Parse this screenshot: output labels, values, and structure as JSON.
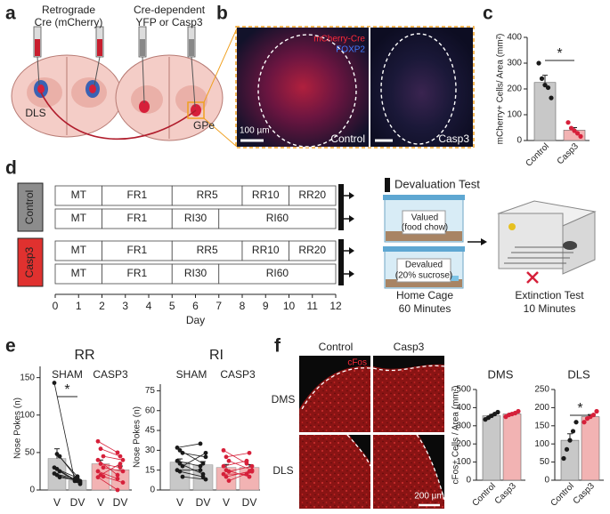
{
  "panel_labels": [
    "a",
    "b",
    "c",
    "d",
    "e",
    "f"
  ],
  "panel_a": {
    "injection_1": [
      "Retrograde",
      "Cre (mCherry)"
    ],
    "injection_2": [
      "Cre-dependent",
      "YFP or Casp3"
    ],
    "regions": [
      "DLS",
      "GPe"
    ]
  },
  "panel_b": {
    "stains": [
      "mCherry-Cre",
      "FOXP2"
    ],
    "scale_bar": "100 µm",
    "conditions": [
      "Control",
      "Casp3"
    ]
  },
  "panel_d": {
    "test_title": "Devaluation Test",
    "valued": [
      "Valued",
      "(food chow)"
    ],
    "devalued": [
      "Devalued",
      "(20% sucrose)"
    ],
    "home_cage": [
      "Home Cage",
      "60 Minutes"
    ],
    "extinction": [
      "Extinction Test",
      "10 Minutes"
    ]
  },
  "panel_f": {
    "conditions": [
      "Control",
      "Casp3"
    ],
    "stain": "cFos",
    "regions": [
      "DMS",
      "DLS"
    ],
    "scale_bar": "200 µm"
  },
  "chart_data": [
    {
      "type": "bar",
      "ylabel": "mCherry+ Cells/ Area (mm²)",
      "categories": [
        "Control",
        "Casp3"
      ],
      "values": [
        225,
        40
      ],
      "errors": [
        28,
        10
      ],
      "colors": [
        "#c8c8c8",
        "#f2b3b3"
      ],
      "point_colors": [
        "#1a1a1a",
        "#d6203a"
      ],
      "points": [
        [
          300,
          240,
          215,
          205,
          165
        ],
        [
          70,
          48,
          38,
          28,
          16
        ]
      ],
      "ylim": [
        0,
        400
      ],
      "yticks": [
        0,
        100,
        200,
        300,
        400
      ],
      "significance": "*"
    },
    {
      "type": "timeline",
      "xlabel": "Day",
      "xlim": [
        0,
        12
      ],
      "xticks": [
        0,
        1,
        2,
        3,
        4,
        5,
        6,
        7,
        8,
        9,
        10,
        11,
        12
      ],
      "groups": [
        {
          "name": "Control",
          "color": "#8c8c8c",
          "rows": [
            [
              {
                "label": "MT",
                "start": 0,
                "end": 2
              },
              {
                "label": "FR1",
                "start": 2,
                "end": 5
              },
              {
                "label": "RR5",
                "start": 5,
                "end": 8
              },
              {
                "label": "RR10",
                "start": 8,
                "end": 10
              },
              {
                "label": "RR20",
                "start": 10,
                "end": 12
              }
            ],
            [
              {
                "label": "MT",
                "start": 0,
                "end": 2
              },
              {
                "label": "FR1",
                "start": 2,
                "end": 5
              },
              {
                "label": "RI30",
                "start": 5,
                "end": 7
              },
              {
                "label": "RI60",
                "start": 7,
                "end": 12
              }
            ]
          ]
        },
        {
          "name": "Casp3",
          "color": "#e0312f",
          "rows": [
            [
              {
                "label": "MT",
                "start": 0,
                "end": 2
              },
              {
                "label": "FR1",
                "start": 2,
                "end": 5
              },
              {
                "label": "RR5",
                "start": 5,
                "end": 8
              },
              {
                "label": "RR10",
                "start": 8,
                "end": 10
              },
              {
                "label": "RR20",
                "start": 10,
                "end": 12
              }
            ],
            [
              {
                "label": "MT",
                "start": 0,
                "end": 2
              },
              {
                "label": "FR1",
                "start": 2,
                "end": 5
              },
              {
                "label": "RI30",
                "start": 5,
                "end": 7
              },
              {
                "label": "RI60",
                "start": 7,
                "end": 12
              }
            ]
          ]
        }
      ]
    },
    {
      "type": "paired",
      "title": "RR",
      "ylabel": "Nose Pokes (n)",
      "colors": [
        "#c8c8c8",
        "#f2b3b3"
      ],
      "point_colors": [
        "#1a1a1a",
        "#d6203a"
      ],
      "ylim": [
        0,
        165
      ],
      "yticks": [
        0,
        50,
        100,
        150
      ],
      "groups": [
        {
          "name": "SHAM",
          "categories": [
            "V",
            "DV"
          ],
          "values": [
            42,
            13
          ],
          "errors": [
            13,
            1.5
          ],
          "significance": "*",
          "subjects": [
            [
              143,
              12
            ],
            [
              48,
              18
            ],
            [
              45,
              10
            ],
            [
              30,
              14
            ],
            [
              28,
              16
            ],
            [
              25,
              8
            ],
            [
              22,
              15
            ],
            [
              20,
              12
            ],
            [
              17,
              12
            ]
          ]
        },
        {
          "name": "CASP3",
          "categories": [
            "V",
            "DV"
          ],
          "values": [
            35,
            27
          ],
          "errors": [
            5,
            5
          ],
          "subjects": [
            [
              65,
              50
            ],
            [
              55,
              45
            ],
            [
              45,
              40
            ],
            [
              40,
              20
            ],
            [
              35,
              30
            ],
            [
              30,
              25
            ],
            [
              25,
              15
            ],
            [
              20,
              35
            ],
            [
              18,
              10
            ],
            [
              17,
              0
            ]
          ]
        }
      ]
    },
    {
      "type": "paired",
      "title": "RI",
      "ylabel": "Nose Pokes (n)",
      "colors": [
        "#c8c8c8",
        "#f2b3b3"
      ],
      "point_colors": [
        "#1a1a1a",
        "#d6203a"
      ],
      "ylim": [
        0,
        80
      ],
      "yticks": [
        0,
        15,
        30,
        45,
        60,
        75
      ],
      "groups": [
        {
          "name": "SHAM",
          "categories": [
            "V",
            "DV"
          ],
          "values": [
            21,
            19
          ],
          "errors": [
            2.5,
            2.5
          ],
          "subjects": [
            [
              32,
              35
            ],
            [
              30,
              20
            ],
            [
              28,
              25
            ],
            [
              22,
              18
            ],
            [
              20,
              12
            ],
            [
              18,
              28
            ],
            [
              15,
              15
            ],
            [
              14,
              10
            ],
            [
              10,
              8
            ]
          ]
        },
        {
          "name": "CASP3",
          "categories": [
            "V",
            "DV"
          ],
          "values": [
            17,
            17
          ],
          "errors": [
            2.3,
            2.2
          ],
          "subjects": [
            [
              30,
              20
            ],
            [
              25,
              28
            ],
            [
              22,
              15
            ],
            [
              18,
              22
            ],
            [
              15,
              10
            ],
            [
              14,
              18
            ],
            [
              12,
              12
            ],
            [
              10,
              14
            ],
            [
              7,
              14
            ]
          ]
        }
      ]
    },
    {
      "type": "bar",
      "title": "DMS",
      "ylabel": "cFos+ Cells / Area (mm²)",
      "categories": [
        "Control",
        "Casp3"
      ],
      "values": [
        355,
        365
      ],
      "errors": [
        7,
        5
      ],
      "colors": [
        "#c8c8c8",
        "#f2b3b3"
      ],
      "point_colors": [
        "#1a1a1a",
        "#d6203a"
      ],
      "points": [
        [
          335,
          345,
          355,
          365,
          375
        ],
        [
          350,
          360,
          365,
          370,
          380
        ]
      ],
      "ylim": [
        0,
        500
      ],
      "yticks": [
        0,
        100,
        200,
        300,
        400,
        500
      ]
    },
    {
      "type": "bar",
      "title": "DLS",
      "categories": [
        "Control",
        "Casp3"
      ],
      "values": [
        110,
        175
      ],
      "errors": [
        18,
        6
      ],
      "colors": [
        "#c8c8c8",
        "#f2b3b3"
      ],
      "point_colors": [
        "#1a1a1a",
        "#d6203a"
      ],
      "points": [
        [
          60,
          85,
          110,
          135,
          160
        ],
        [
          160,
          170,
          175,
          180,
          190
        ]
      ],
      "ylim": [
        0,
        250
      ],
      "yticks": [
        0,
        50,
        100,
        150,
        200,
        250
      ],
      "significance": "*"
    }
  ]
}
